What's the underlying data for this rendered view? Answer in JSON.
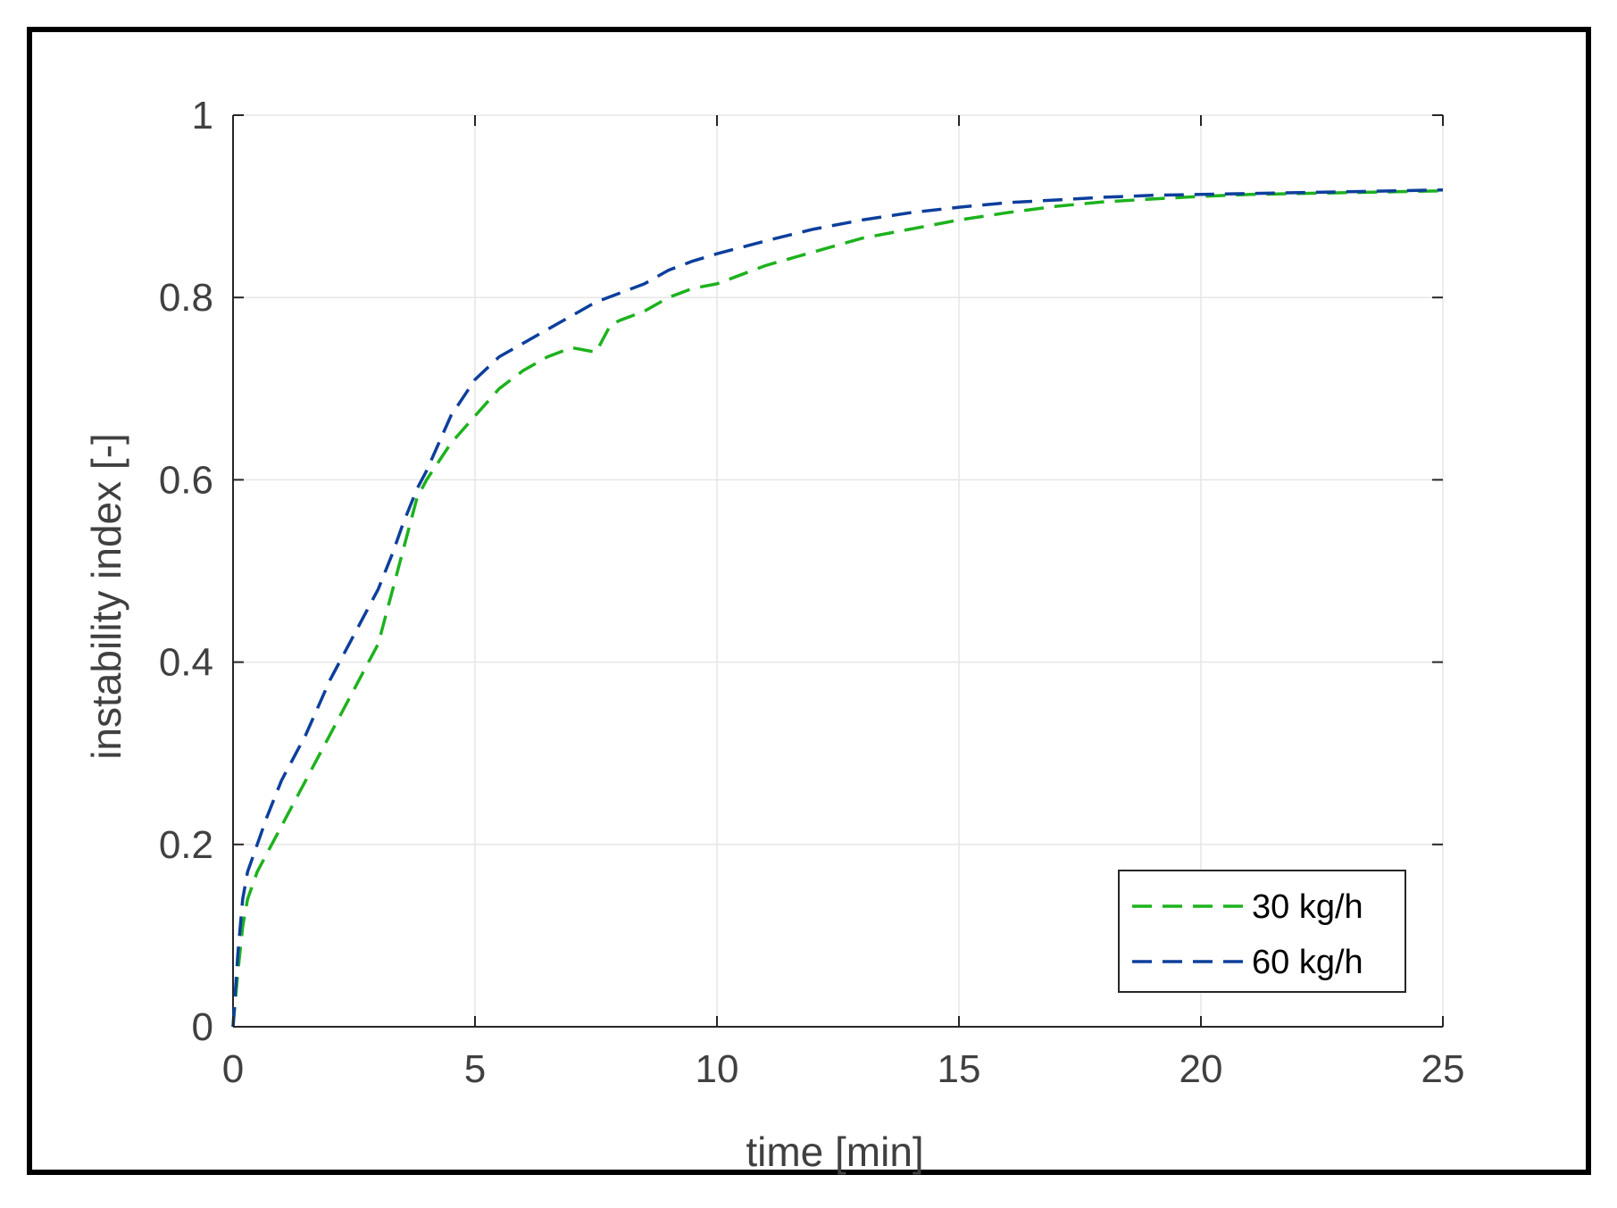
{
  "chart_data": {
    "type": "line",
    "title": "",
    "xlabel": "time [min]",
    "ylabel": "instability index [-]",
    "xlim": [
      0,
      25
    ],
    "ylim": [
      0,
      1
    ],
    "xticks": [
      0,
      5,
      10,
      15,
      20,
      25
    ],
    "yticks": [
      0,
      0.2,
      0.4,
      0.6,
      0.8,
      1
    ],
    "xtick_labels": [
      "0",
      "5",
      "10",
      "15",
      "20",
      "25"
    ],
    "ytick_labels": [
      "0",
      "0.2",
      "0.4",
      "0.6",
      "0.8",
      "1"
    ],
    "grid": true,
    "legend_position": "bottom-right",
    "series": [
      {
        "name": "30 kg/h",
        "color": "#1db21d",
        "style": "dashed",
        "x": [
          0,
          0.1,
          0.2,
          0.3,
          0.5,
          0.7,
          1.0,
          1.5,
          2.0,
          2.5,
          3.0,
          3.3,
          3.5,
          3.8,
          4.0,
          4.5,
          5.0,
          5.5,
          6.0,
          6.5,
          7.0,
          7.5,
          7.8,
          8.0,
          8.5,
          9.0,
          9.5,
          10.0,
          11.0,
          12.0,
          13.0,
          14.0,
          15.0,
          16.0,
          17.0,
          18.0,
          19.0,
          20.0,
          21.0,
          22.0,
          23.0,
          24.0,
          25.0
        ],
        "values": [
          0,
          0.06,
          0.11,
          0.14,
          0.17,
          0.19,
          0.22,
          0.27,
          0.32,
          0.37,
          0.42,
          0.48,
          0.52,
          0.58,
          0.6,
          0.64,
          0.67,
          0.7,
          0.72,
          0.735,
          0.745,
          0.74,
          0.77,
          0.775,
          0.785,
          0.8,
          0.81,
          0.815,
          0.835,
          0.85,
          0.865,
          0.875,
          0.885,
          0.893,
          0.9,
          0.905,
          0.908,
          0.911,
          0.913,
          0.914,
          0.915,
          0.916,
          0.917
        ]
      },
      {
        "name": "60 kg/h",
        "color": "#0d3f9c",
        "style": "dashed",
        "x": [
          0,
          0.1,
          0.2,
          0.3,
          0.5,
          0.7,
          1.0,
          1.5,
          2.0,
          2.5,
          3.0,
          3.3,
          3.5,
          3.8,
          4.0,
          4.5,
          5.0,
          5.5,
          6.0,
          6.5,
          7.0,
          7.5,
          8.0,
          8.5,
          9.0,
          9.5,
          10.0,
          11.0,
          12.0,
          13.0,
          14.0,
          15.0,
          16.0,
          17.0,
          18.0,
          19.0,
          20.0,
          21.0,
          22.0,
          23.0,
          24.0,
          25.0
        ],
        "values": [
          0,
          0.08,
          0.14,
          0.17,
          0.2,
          0.23,
          0.27,
          0.32,
          0.38,
          0.43,
          0.48,
          0.52,
          0.55,
          0.59,
          0.61,
          0.67,
          0.71,
          0.735,
          0.75,
          0.765,
          0.78,
          0.795,
          0.805,
          0.815,
          0.83,
          0.84,
          0.848,
          0.862,
          0.875,
          0.885,
          0.893,
          0.899,
          0.904,
          0.907,
          0.91,
          0.912,
          0.913,
          0.914,
          0.915,
          0.916,
          0.917,
          0.918
        ]
      }
    ]
  }
}
